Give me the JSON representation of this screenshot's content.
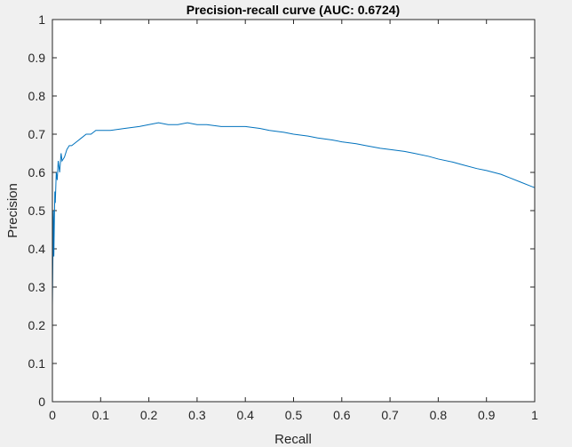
{
  "chart_data": {
    "type": "line",
    "title": "Precision-recall curve (AUC: 0.6724)",
    "xlabel": "Recall",
    "ylabel": "Precision",
    "xlim": [
      0,
      1
    ],
    "ylim": [
      0,
      1
    ],
    "xticks": [
      "0",
      "0.1",
      "0.2",
      "0.3",
      "0.4",
      "0.5",
      "0.6",
      "0.7",
      "0.8",
      "0.9",
      "1"
    ],
    "yticks": [
      "0",
      "0.1",
      "0.2",
      "0.3",
      "0.4",
      "0.5",
      "0.6",
      "0.7",
      "0.8",
      "0.9",
      "1"
    ],
    "grid": false,
    "colors": {
      "line": "#0072bd",
      "axes": "#262626",
      "figure_bg": "#f0f0f0",
      "axes_bg": "#ffffff"
    },
    "series": [
      {
        "x": [
          0,
          0,
          0.002,
          0.003,
          0.005,
          0.006,
          0.008,
          0.01,
          0.012,
          0.015,
          0.018,
          0.02,
          0.025,
          0.03,
          0.035,
          0.04,
          0.05,
          0.06,
          0.07,
          0.08,
          0.09,
          0.1,
          0.12,
          0.15,
          0.18,
          0.2,
          0.22,
          0.24,
          0.26,
          0.28,
          0.3,
          0.32,
          0.35,
          0.38,
          0.4,
          0.43,
          0.45,
          0.48,
          0.5,
          0.53,
          0.55,
          0.58,
          0.6,
          0.63,
          0.65,
          0.68,
          0.7,
          0.73,
          0.75,
          0.78,
          0.8,
          0.83,
          0.85,
          0.88,
          0.9,
          0.93,
          0.95,
          0.97,
          0.99,
          1.0,
          1.0
        ],
        "y": [
          1.0,
          0.25,
          0.5,
          0.38,
          0.55,
          0.52,
          0.6,
          0.58,
          0.63,
          0.6,
          0.65,
          0.63,
          0.64,
          0.66,
          0.67,
          0.67,
          0.68,
          0.69,
          0.7,
          0.7,
          0.71,
          0.71,
          0.71,
          0.715,
          0.72,
          0.725,
          0.73,
          0.725,
          0.725,
          0.73,
          0.725,
          0.725,
          0.72,
          0.72,
          0.72,
          0.715,
          0.71,
          0.705,
          0.7,
          0.695,
          0.69,
          0.685,
          0.68,
          0.675,
          0.67,
          0.663,
          0.66,
          0.655,
          0.65,
          0.642,
          0.635,
          0.627,
          0.62,
          0.61,
          0.605,
          0.595,
          0.585,
          0.575,
          0.565,
          0.56,
          0.0
        ]
      }
    ]
  }
}
